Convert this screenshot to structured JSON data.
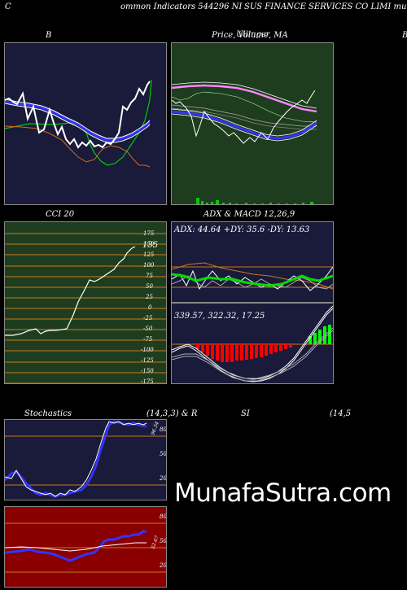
{
  "header": {
    "left": "C",
    "center": "ommon  Indicators 544296  NI",
    "right": "SUS FINANCE SERVICES CO LIMI munafa"
  },
  "panels": {
    "bb": {
      "title": "B"
    },
    "price": {
      "title": "Price,  Volume,  MA",
      "overlay": "Ullinger",
      "right_letter": "B"
    },
    "cci": {
      "title": "CCI 20",
      "value": "135",
      "ticks": [
        "175",
        "150",
        "125",
        "100",
        "75",
        "50",
        "25",
        "0",
        "-25",
        "-50",
        "-75",
        "-100",
        "-125",
        "-150",
        "-175"
      ]
    },
    "adx": {
      "title": "ADX  & MACD 12,26,9",
      "readout": "ADX: 44.64   +DY: 35.6   -DY: 13.63"
    },
    "macd": {
      "readout": "339.57,   322.32,   17.25"
    },
    "stoch": {
      "title_left": "Stochastics",
      "title_mid": "(14,3,3) & R",
      "title_right": "SI",
      "title_far": "(14,5",
      "value": "96.34",
      "ticks": [
        "80",
        "50",
        "20"
      ]
    },
    "rsi": {
      "value": "52.67",
      "ticks": [
        "80",
        "50",
        "20"
      ]
    }
  },
  "watermark": "MunafaSutra.com",
  "colors": {
    "navy_panel": "#1a1a3a",
    "green_panel": "#1e3d1e",
    "red_panel": "#8a0000",
    "grid_orange": "#c87a1a",
    "macd_red": "#ff0000",
    "macd_green": "#00ff00",
    "blue_line": "#3333ff"
  }
}
